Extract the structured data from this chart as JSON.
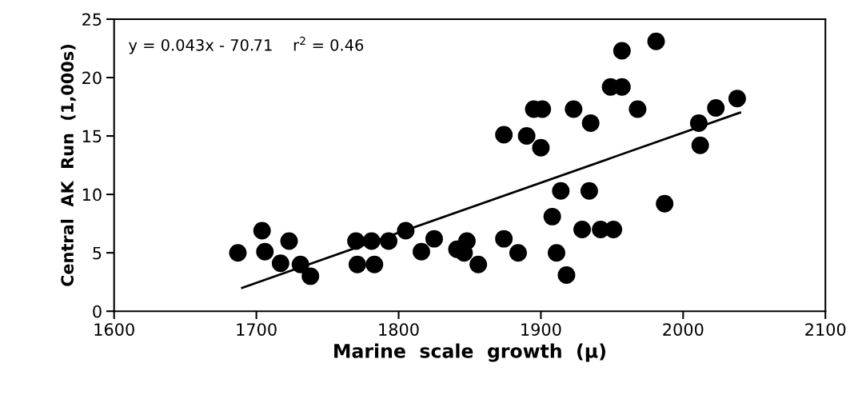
{
  "chart_data": {
    "type": "scatter",
    "xlabel": "Marine  scale  growth  (μ)",
    "ylabel": "Central  AK  Run  (1,000s)",
    "annotations": [
      "y = 0.043x - 70.71    r$^{2}$ = 0.46"
    ],
    "xlim": [
      1600,
      2100
    ],
    "xticks": [
      1600,
      1700,
      1800,
      1900,
      2000,
      2100
    ],
    "ylim": [
      0,
      25
    ],
    "yticks": [
      0,
      5,
      10,
      15,
      20,
      25
    ],
    "grid": false,
    "marker": "circle",
    "series": [
      {
        "color": "#000000",
        "x": [
          1687,
          1704,
          1706,
          1723,
          1717,
          1731,
          1738,
          1771,
          1783,
          1770,
          1781,
          1793,
          1805,
          1816,
          1825,
          1841,
          1848,
          1846,
          1856,
          1874,
          1884,
          1874,
          1890,
          1900,
          1895,
          1901,
          1923,
          1935,
          1949,
          1957,
          1957,
          1981,
          1968,
          1908,
          1914,
          1934,
          1911,
          1918,
          1929,
          1942,
          1951,
          1987,
          2011,
          2012,
          2023,
          2038
        ],
        "values": [
          5.0,
          6.9,
          5.1,
          6.0,
          4.1,
          4.0,
          3.0,
          4.0,
          4.0,
          6.0,
          6.0,
          6.0,
          6.9,
          5.1,
          6.2,
          5.3,
          6.0,
          5.0,
          4.0,
          6.2,
          5.0,
          15.1,
          15.0,
          14.0,
          17.3,
          17.3,
          17.3,
          16.1,
          19.2,
          19.2,
          22.3,
          23.1,
          17.3,
          8.1,
          10.3,
          10.3,
          5.0,
          3.1,
          7.0,
          7.0,
          7.0,
          9.2,
          16.1,
          14.2,
          17.4,
          18.2
        ]
      },
      {
        "type": "line",
        "color": "#000000",
        "marker": "none",
        "line_style": "solid",
        "x": [
          1690,
          2040
        ],
        "values": [
          2.0,
          17.0
        ]
      }
    ]
  }
}
